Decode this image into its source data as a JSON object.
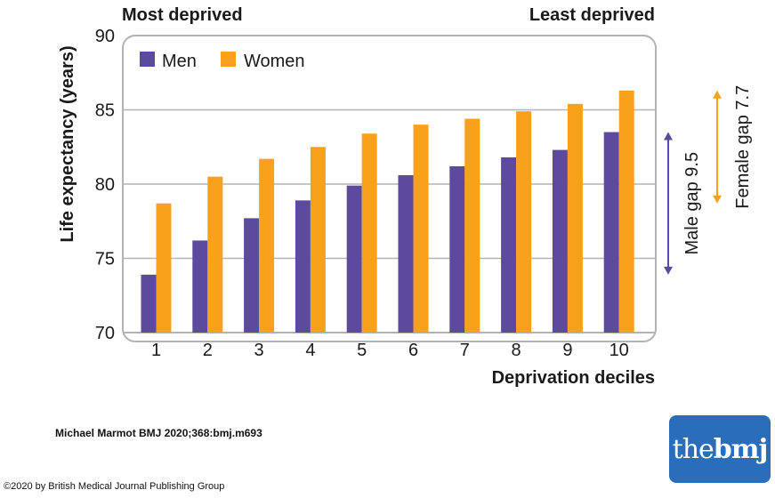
{
  "header": {
    "left_label": "Most deprived",
    "right_label": "Least deprived"
  },
  "citation": "Michael Marmot BMJ 2020;368:bmj.m693",
  "copyright": "©2020 by British Medical Journal Publishing Group",
  "logo": {
    "part1": "the",
    "part2": "bmj"
  },
  "colors": {
    "men": "#5b4a9e",
    "women": "#f9a11b",
    "frame": "#b3b3b3",
    "grid": "#b3b3b3",
    "logo_bg": "#2a6ebb"
  },
  "chart_data": {
    "type": "bar",
    "xlabel": "Deprivation deciles",
    "ylabel": "Life expectancy (years)",
    "categories": [
      "1",
      "2",
      "3",
      "4",
      "5",
      "6",
      "7",
      "8",
      "9",
      "10"
    ],
    "ylim": [
      70,
      90
    ],
    "yticks": [
      70,
      75,
      80,
      85,
      90
    ],
    "grid": true,
    "legend_position": "top-left",
    "series": [
      {
        "name": "Men",
        "values": [
          73.9,
          76.2,
          77.7,
          78.9,
          79.9,
          80.6,
          81.2,
          81.8,
          82.3,
          83.5
        ]
      },
      {
        "name": "Women",
        "values": [
          78.7,
          80.5,
          81.7,
          82.5,
          83.4,
          84.0,
          84.4,
          84.9,
          85.4,
          86.3
        ]
      }
    ],
    "annotations": {
      "male_gap": {
        "label": "Male gap 9.5",
        "from": 73.9,
        "to": 83.5
      },
      "female_gap": {
        "label": "Female gap 7.7",
        "from": 78.7,
        "to": 86.3
      }
    }
  }
}
